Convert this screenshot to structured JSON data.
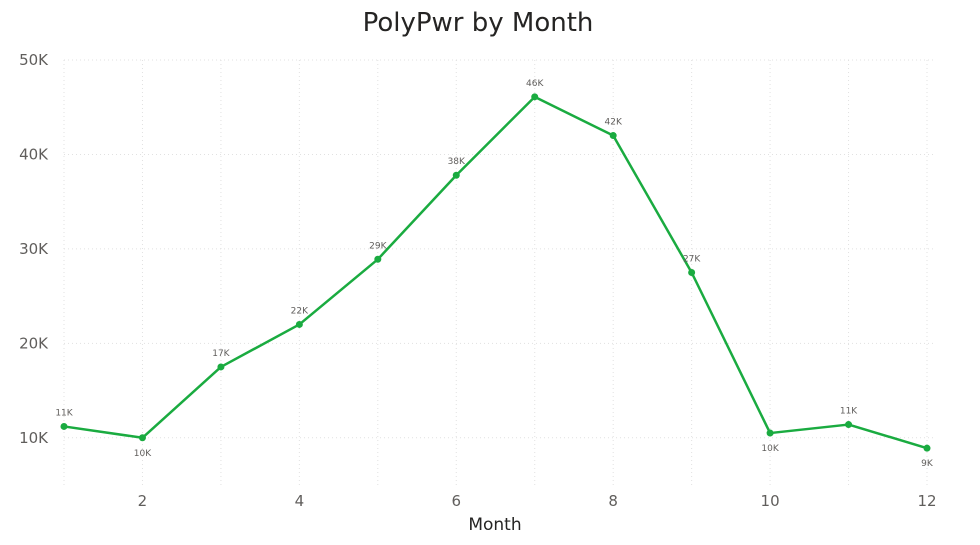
{
  "chart_data": {
    "type": "line",
    "title": "PolyPwr by Month",
    "xlabel": "Month",
    "ylabel": "",
    "x": [
      1,
      2,
      3,
      4,
      5,
      6,
      7,
      8,
      9,
      10,
      11,
      12
    ],
    "series": [
      {
        "values": [
          11200,
          10000,
          17500,
          22000,
          28900,
          37800,
          46100,
          42000,
          27500,
          10500,
          11400,
          8900
        ],
        "labels": [
          "11K",
          "10K",
          "17K",
          "22K",
          "29K",
          "38K",
          "46K",
          "42K",
          "27K",
          "10K",
          "11K",
          "9K"
        ]
      }
    ],
    "xlim": [
      1,
      12
    ],
    "ylim": [
      5000,
      50000
    ],
    "x_ticks": [
      2,
      4,
      6,
      8,
      10,
      12
    ],
    "x_tick_labels": [
      "2",
      "4",
      "6",
      "8",
      "10",
      "12"
    ],
    "y_ticks": [
      10000,
      20000,
      30000,
      40000,
      50000
    ],
    "y_tick_labels": [
      "10K",
      "20K",
      "30K",
      "40K",
      "50K"
    ],
    "grid": true,
    "legend": "none",
    "colors": {
      "line": "#1AAB40",
      "grid": "#E1E1E1",
      "text": "#605E5C",
      "title": "#252423"
    }
  }
}
